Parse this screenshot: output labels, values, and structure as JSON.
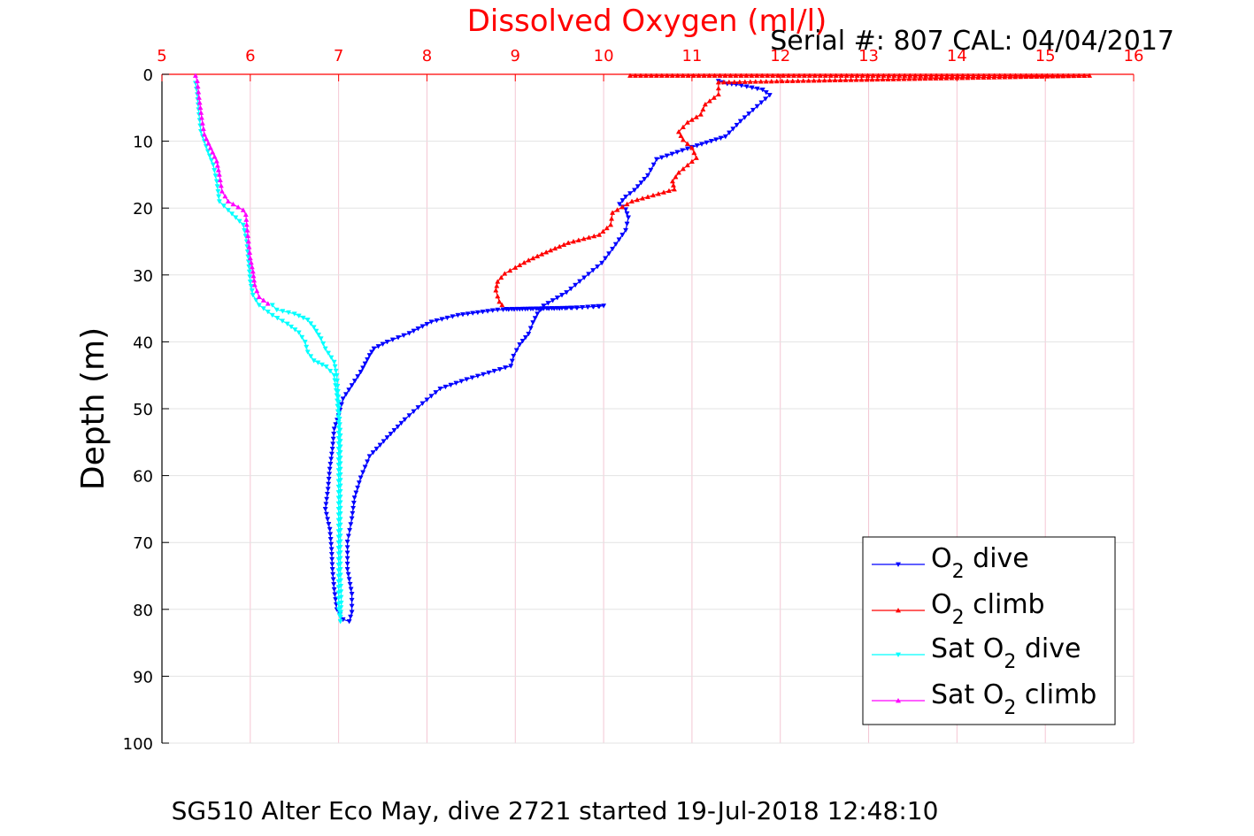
{
  "chart_data": {
    "type": "line",
    "title": "Dissolved Oxygen (ml/l)",
    "subtitle": "Serial #: 807  CAL: 04/04/2017",
    "footer": "SG510 Alter Eco May, dive 2721 started 19-Jul-2018 12:48:10",
    "ylabel": "Depth (m)",
    "xlim": [
      5,
      16
    ],
    "ylim": [
      0,
      100
    ],
    "y_reversed": true,
    "x_axis_position": "top",
    "x_ticks": [
      5,
      6,
      7,
      8,
      9,
      10,
      11,
      12,
      13,
      14,
      15,
      16
    ],
    "y_ticks": [
      0,
      10,
      20,
      30,
      40,
      50,
      60,
      70,
      80,
      90,
      100
    ],
    "grid": true,
    "legend_position": "bottom-right",
    "series": [
      {
        "name": "O2 dive",
        "legend": {
          "prefix": "O",
          "sub": "2",
          "suffix": " dive"
        },
        "color": "#0000ff",
        "marker": "triangle-down",
        "points": [
          [
            11.3,
            1.0
          ],
          [
            11.4,
            1.4
          ],
          [
            11.5,
            1.5
          ],
          [
            11.8,
            2.3
          ],
          [
            11.88,
            3.1
          ],
          [
            11.55,
            7.0
          ],
          [
            11.38,
            9.3
          ],
          [
            10.95,
            11.1
          ],
          [
            10.6,
            12.7
          ],
          [
            10.5,
            15.1
          ],
          [
            10.35,
            17.3
          ],
          [
            10.25,
            18.3
          ],
          [
            10.18,
            19.4
          ],
          [
            10.25,
            20.2
          ],
          [
            10.28,
            21.4
          ],
          [
            10.25,
            23.3
          ],
          [
            10.1,
            26.1
          ],
          [
            9.98,
            28.2
          ],
          [
            9.78,
            30.4
          ],
          [
            9.58,
            32.6
          ],
          [
            9.32,
            34.6
          ],
          [
            9.25,
            35.8
          ],
          [
            9.2,
            37.1
          ],
          [
            9.15,
            38.8
          ],
          [
            9.05,
            40.4
          ],
          [
            8.98,
            42.1
          ],
          [
            8.95,
            43.6
          ],
          [
            8.7,
            44.6
          ],
          [
            8.45,
            45.6
          ],
          [
            8.15,
            47.0
          ],
          [
            7.95,
            49.2
          ],
          [
            7.75,
            51.6
          ],
          [
            7.55,
            54.3
          ],
          [
            7.35,
            57.1
          ],
          [
            7.25,
            60.3
          ],
          [
            7.18,
            63.3
          ],
          [
            7.15,
            66.4
          ],
          [
            7.1,
            69.9
          ],
          [
            7.1,
            74.0
          ],
          [
            7.15,
            77.7
          ],
          [
            7.15,
            80.4
          ],
          [
            7.12,
            81.8
          ],
          [
            7.05,
            81.5
          ],
          [
            6.98,
            80.0
          ],
          [
            6.95,
            77.0
          ],
          [
            6.93,
            74.0
          ],
          [
            6.92,
            71.0
          ],
          [
            6.9,
            68.0
          ],
          [
            6.85,
            65.0
          ],
          [
            6.88,
            62.0
          ],
          [
            6.9,
            59.0
          ],
          [
            6.93,
            56.0
          ],
          [
            6.95,
            53.0
          ],
          [
            7.0,
            51.0
          ],
          [
            7.05,
            48.5
          ],
          [
            7.15,
            46.5
          ],
          [
            7.25,
            44.5
          ],
          [
            7.35,
            42.0
          ],
          [
            7.4,
            41.0
          ],
          [
            7.55,
            40.0
          ],
          [
            7.8,
            38.7
          ],
          [
            8.05,
            37.0
          ],
          [
            8.35,
            36.0
          ],
          [
            8.8,
            35.2
          ],
          [
            9.3,
            35.0
          ],
          [
            9.7,
            34.9
          ],
          [
            10.0,
            34.6
          ],
          [
            9.95,
            34.7
          ],
          [
            9.5,
            35.0
          ],
          [
            8.9,
            35.1
          ]
        ]
      },
      {
        "name": "O2 climb",
        "legend": {
          "prefix": "O",
          "sub": "2",
          "suffix": " climb"
        },
        "color": "#ff0000",
        "marker": "triangle-up",
        "points": [
          [
            8.85,
            34.5
          ],
          [
            8.82,
            34.0
          ],
          [
            8.8,
            33.2
          ],
          [
            8.78,
            32.3
          ],
          [
            8.8,
            31.0
          ],
          [
            8.88,
            29.8
          ],
          [
            9.0,
            28.9
          ],
          [
            9.15,
            27.8
          ],
          [
            9.35,
            26.6
          ],
          [
            9.6,
            25.2
          ],
          [
            9.95,
            24.0
          ],
          [
            10.08,
            22.5
          ],
          [
            10.1,
            20.7
          ],
          [
            10.32,
            19.0
          ],
          [
            10.8,
            17.2
          ],
          [
            10.78,
            16.0
          ],
          [
            10.85,
            14.7
          ],
          [
            11.05,
            12.5
          ],
          [
            11.0,
            11.0
          ],
          [
            10.9,
            9.8
          ],
          [
            10.85,
            8.6
          ],
          [
            10.95,
            7.2
          ],
          [
            11.1,
            6.0
          ],
          [
            11.15,
            4.5
          ],
          [
            11.3,
            3.0
          ],
          [
            11.3,
            1.2
          ],
          [
            15.5,
            0.2
          ],
          [
            10.3,
            0.2
          ]
        ]
      },
      {
        "name": "Sat O2 dive",
        "legend": {
          "prefix": "Sat O",
          "sub": "2",
          "suffix": " dive"
        },
        "color": "#00ffff",
        "marker": "triangle-down",
        "points": [
          [
            5.38,
            1.3
          ],
          [
            5.4,
            3.0
          ],
          [
            5.42,
            6.0
          ],
          [
            5.44,
            8.5
          ],
          [
            5.48,
            10.0
          ],
          [
            5.52,
            11.5
          ],
          [
            5.58,
            13.5
          ],
          [
            5.62,
            16.0
          ],
          [
            5.65,
            19.0
          ],
          [
            5.75,
            20.3
          ],
          [
            5.92,
            22.5
          ],
          [
            5.96,
            25.0
          ],
          [
            5.98,
            28.0
          ],
          [
            6.0,
            31.0
          ],
          [
            6.03,
            33.0
          ],
          [
            6.1,
            34.5
          ],
          [
            6.25,
            36.0
          ],
          [
            6.42,
            37.3
          ],
          [
            6.55,
            38.6
          ],
          [
            6.62,
            40.0
          ],
          [
            6.65,
            41.5
          ],
          [
            6.72,
            42.8
          ],
          [
            6.86,
            43.7
          ],
          [
            6.95,
            45.0
          ],
          [
            6.98,
            48.0
          ],
          [
            7.0,
            52.0
          ],
          [
            7.0,
            56.0
          ],
          [
            7.0,
            60.0
          ],
          [
            7.0,
            65.0
          ],
          [
            7.0,
            70.0
          ],
          [
            7.0,
            75.0
          ],
          [
            7.0,
            80.0
          ],
          [
            7.02,
            81.8
          ],
          [
            7.03,
            79.0
          ],
          [
            7.02,
            74.0
          ],
          [
            7.02,
            69.0
          ],
          [
            7.02,
            64.0
          ],
          [
            7.02,
            59.0
          ],
          [
            7.02,
            54.0
          ],
          [
            7.0,
            49.0
          ],
          [
            6.98,
            45.0
          ],
          [
            6.95,
            43.0
          ],
          [
            6.85,
            41.0
          ],
          [
            6.8,
            39.5
          ],
          [
            6.72,
            37.8
          ],
          [
            6.65,
            36.7
          ],
          [
            6.5,
            35.8
          ],
          [
            6.3,
            35.2
          ],
          [
            6.25,
            34.5
          ]
        ]
      },
      {
        "name": "Sat O2 climb",
        "legend": {
          "prefix": "Sat O",
          "sub": "2",
          "suffix": " climb"
        },
        "color": "#ff00ff",
        "marker": "triangle-up",
        "points": [
          [
            6.2,
            34.3
          ],
          [
            6.1,
            33.3
          ],
          [
            6.05,
            31.5
          ],
          [
            6.03,
            29.5
          ],
          [
            6.0,
            27.5
          ],
          [
            5.98,
            25.0
          ],
          [
            5.96,
            22.5
          ],
          [
            5.95,
            21.0
          ],
          [
            5.92,
            20.3
          ],
          [
            5.75,
            19.0
          ],
          [
            5.68,
            17.5
          ],
          [
            5.65,
            15.0
          ],
          [
            5.62,
            13.0
          ],
          [
            5.55,
            11.0
          ],
          [
            5.48,
            9.0
          ],
          [
            5.45,
            6.5
          ],
          [
            5.42,
            3.5
          ],
          [
            5.4,
            1.0
          ],
          [
            5.38,
            0.2
          ]
        ]
      }
    ]
  }
}
